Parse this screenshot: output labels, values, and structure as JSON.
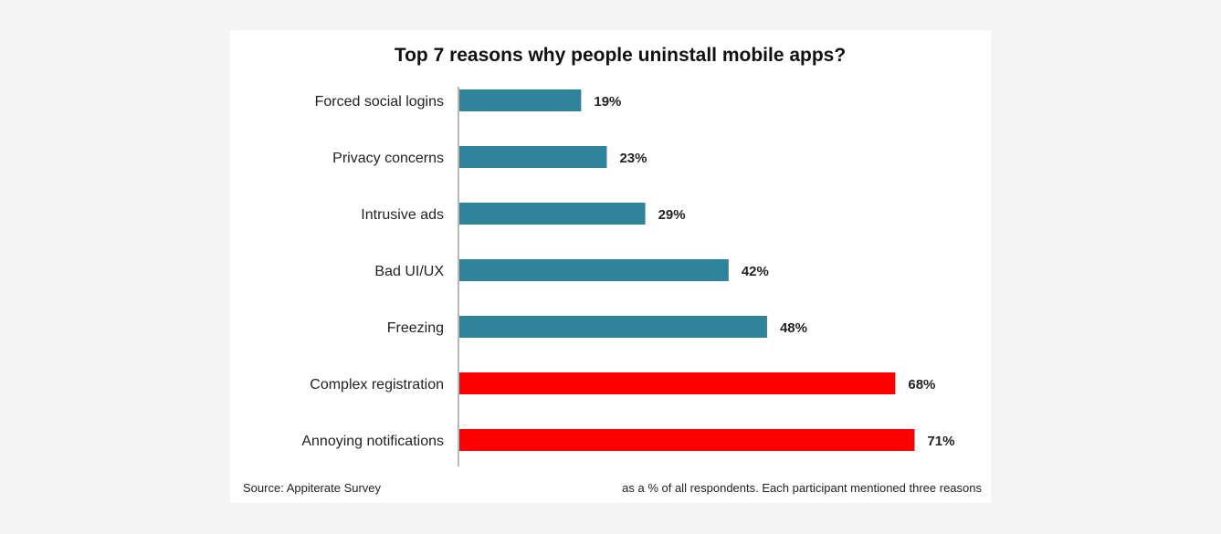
{
  "chart_data": {
    "type": "bar",
    "orientation": "horizontal",
    "title": "Top 7 reasons why people uninstall mobile apps?",
    "categories": [
      "Forced social logins",
      "Privacy concerns",
      "Intrusive ads",
      "Bad UI/UX",
      "Freezing",
      "Complex registration",
      "Annoying notifications"
    ],
    "values": [
      19,
      23,
      29,
      42,
      48,
      68,
      71
    ],
    "value_labels": [
      "19%",
      "23%",
      "29%",
      "42%",
      "48%",
      "68%",
      "71%"
    ],
    "bar_colors": [
      "#2e829a",
      "#2e829a",
      "#2e829a",
      "#2e829a",
      "#2e829a",
      "#ff0000",
      "#ff0000"
    ],
    "xlim": [
      0,
      100
    ],
    "grid": false,
    "source": "Source: Appiterate Survey",
    "note": "as a % of all respondents. Each participant  mentioned three reasons"
  }
}
